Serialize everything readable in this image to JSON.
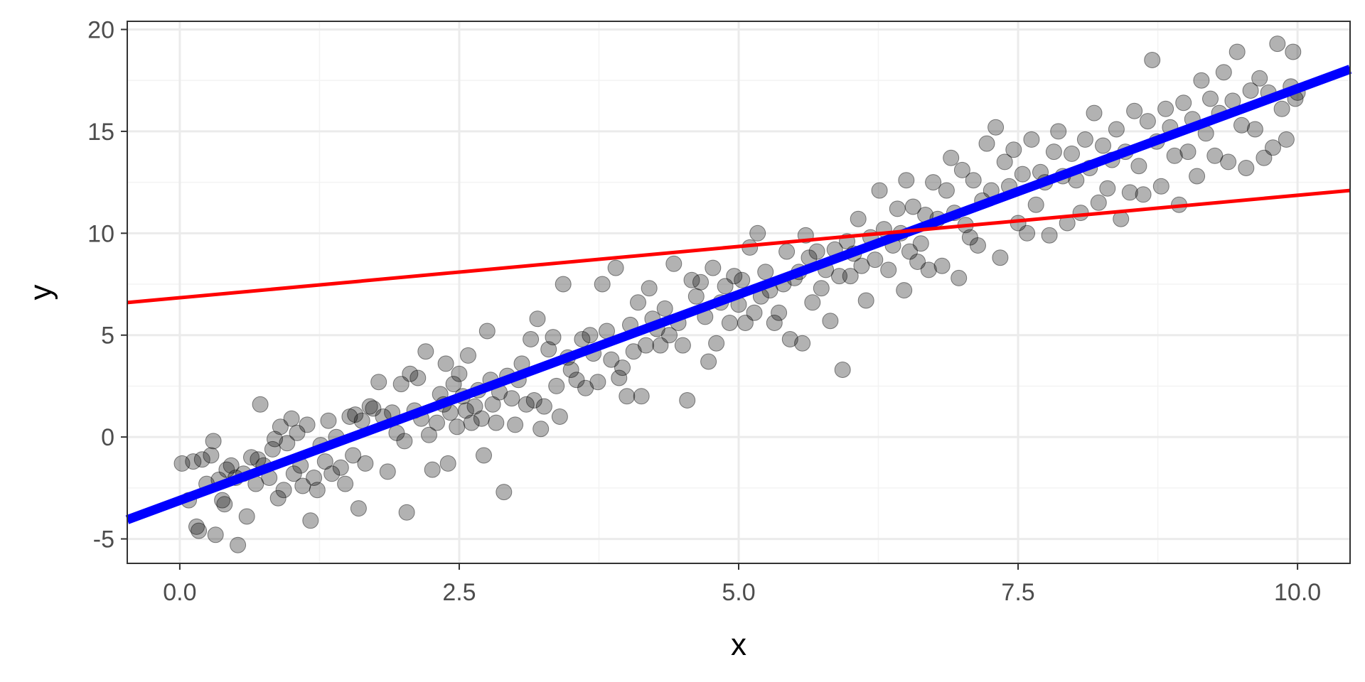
{
  "chart_data": {
    "type": "scatter",
    "title": "",
    "xlabel": "x",
    "ylabel": "y",
    "xlim": [
      -0.47,
      10.47
    ],
    "ylim": [
      -6.2,
      20.4
    ],
    "grid": true,
    "x_ticks": [
      0.0,
      2.5,
      5.0,
      7.5,
      10.0
    ],
    "x_tick_labels": [
      "0.0",
      "2.5",
      "5.0",
      "7.5",
      "10.0"
    ],
    "y_ticks": [
      -5,
      0,
      5,
      10,
      15,
      20
    ],
    "y_tick_labels": [
      "-5",
      "0",
      "5",
      "10",
      "15",
      "20"
    ],
    "colors": {
      "points": "#000000",
      "fit_line": "#0000ff",
      "reference_line": "#ff0000",
      "grid_major": "#ebebeb",
      "grid_minor": "#f3f3f3",
      "panel_border": "#333333",
      "tick_text": "#4d4d4d"
    },
    "points_alpha": 0.3,
    "lines": [
      {
        "name": "",
        "color": "#0000ff",
        "width": "thick",
        "x": [
          -0.47,
          10.47
        ],
        "y": [
          -4.06,
          18.05
        ]
      },
      {
        "name": "",
        "color": "#ff0000",
        "width": "thin",
        "x": [
          -0.47,
          10.47
        ],
        "y": [
          6.6,
          12.1
        ]
      }
    ],
    "series": [
      {
        "name": "",
        "points": [
          [
            0.02,
            -1.3
          ],
          [
            0.08,
            -3.1
          ],
          [
            0.12,
            -1.2
          ],
          [
            0.15,
            -4.4
          ],
          [
            0.17,
            -4.6
          ],
          [
            0.2,
            -1.1
          ],
          [
            0.24,
            -2.3
          ],
          [
            0.28,
            -0.9
          ],
          [
            0.3,
            -0.2
          ],
          [
            0.32,
            -4.8
          ],
          [
            0.35,
            -2.1
          ],
          [
            0.38,
            -3.1
          ],
          [
            0.4,
            -3.3
          ],
          [
            0.42,
            -1.6
          ],
          [
            0.46,
            -1.4
          ],
          [
            0.5,
            -2.0
          ],
          [
            0.52,
            -5.3
          ],
          [
            0.57,
            -1.8
          ],
          [
            0.6,
            -3.9
          ],
          [
            0.64,
            -1.0
          ],
          [
            0.68,
            -2.3
          ],
          [
            0.7,
            -1.1
          ],
          [
            0.72,
            1.6
          ],
          [
            0.75,
            -1.4
          ],
          [
            0.8,
            -2.0
          ],
          [
            0.83,
            -0.6
          ],
          [
            0.85,
            -0.1
          ],
          [
            0.88,
            -3.0
          ],
          [
            0.9,
            0.5
          ],
          [
            0.93,
            -2.6
          ],
          [
            0.96,
            -0.3
          ],
          [
            1.0,
            0.9
          ],
          [
            1.02,
            -1.8
          ],
          [
            1.05,
            0.2
          ],
          [
            1.08,
            -1.4
          ],
          [
            1.1,
            -2.4
          ],
          [
            1.14,
            0.6
          ],
          [
            1.17,
            -4.1
          ],
          [
            1.2,
            -2.0
          ],
          [
            1.23,
            -2.6
          ],
          [
            1.26,
            -0.4
          ],
          [
            1.3,
            -1.2
          ],
          [
            1.33,
            0.8
          ],
          [
            1.36,
            -1.8
          ],
          [
            1.4,
            0.0
          ],
          [
            1.44,
            -1.5
          ],
          [
            1.48,
            -2.3
          ],
          [
            1.52,
            1.0
          ],
          [
            1.55,
            -0.9
          ],
          [
            1.57,
            1.1
          ],
          [
            1.6,
            -3.5
          ],
          [
            1.63,
            0.8
          ],
          [
            1.66,
            -1.3
          ],
          [
            1.7,
            1.5
          ],
          [
            1.73,
            1.4
          ],
          [
            1.78,
            2.7
          ],
          [
            1.82,
            1.0
          ],
          [
            1.86,
            -1.7
          ],
          [
            1.9,
            1.2
          ],
          [
            1.94,
            0.2
          ],
          [
            1.98,
            2.6
          ],
          [
            2.01,
            -0.2
          ],
          [
            2.03,
            -3.7
          ],
          [
            2.06,
            3.1
          ],
          [
            2.1,
            1.3
          ],
          [
            2.13,
            2.9
          ],
          [
            2.16,
            0.9
          ],
          [
            2.2,
            4.2
          ],
          [
            2.23,
            0.1
          ],
          [
            2.26,
            -1.6
          ],
          [
            2.3,
            0.7
          ],
          [
            2.33,
            2.1
          ],
          [
            2.36,
            1.6
          ],
          [
            2.38,
            3.6
          ],
          [
            2.4,
            -1.3
          ],
          [
            2.42,
            1.2
          ],
          [
            2.45,
            2.6
          ],
          [
            2.48,
            0.5
          ],
          [
            2.5,
            3.1
          ],
          [
            2.53,
            2.0
          ],
          [
            2.56,
            1.3
          ],
          [
            2.58,
            4.0
          ],
          [
            2.61,
            0.7
          ],
          [
            2.64,
            1.5
          ],
          [
            2.67,
            2.3
          ],
          [
            2.7,
            0.9
          ],
          [
            2.72,
            -0.9
          ],
          [
            2.75,
            5.2
          ],
          [
            2.78,
            2.8
          ],
          [
            2.8,
            1.6
          ],
          [
            2.83,
            0.7
          ],
          [
            2.86,
            2.2
          ],
          [
            2.9,
            -2.7
          ],
          [
            2.93,
            3.0
          ],
          [
            2.97,
            1.9
          ],
          [
            3.0,
            0.6
          ],
          [
            3.03,
            2.8
          ],
          [
            3.06,
            3.6
          ],
          [
            3.1,
            1.6
          ],
          [
            3.14,
            4.8
          ],
          [
            3.17,
            1.8
          ],
          [
            3.2,
            5.8
          ],
          [
            3.23,
            0.4
          ],
          [
            3.26,
            1.5
          ],
          [
            3.3,
            4.3
          ],
          [
            3.34,
            4.9
          ],
          [
            3.37,
            2.5
          ],
          [
            3.4,
            1.0
          ],
          [
            3.43,
            7.5
          ],
          [
            3.47,
            3.9
          ],
          [
            3.5,
            3.3
          ],
          [
            3.55,
            2.8
          ],
          [
            3.6,
            4.8
          ],
          [
            3.63,
            2.4
          ],
          [
            3.67,
            5.0
          ],
          [
            3.7,
            4.1
          ],
          [
            3.74,
            2.7
          ],
          [
            3.78,
            7.5
          ],
          [
            3.82,
            5.2
          ],
          [
            3.86,
            3.8
          ],
          [
            3.9,
            8.3
          ],
          [
            3.93,
            2.9
          ],
          [
            3.96,
            3.4
          ],
          [
            4.0,
            2.0
          ],
          [
            4.03,
            5.5
          ],
          [
            4.06,
            4.2
          ],
          [
            4.1,
            6.6
          ],
          [
            4.13,
            2.0
          ],
          [
            4.17,
            4.5
          ],
          [
            4.2,
            7.3
          ],
          [
            4.23,
            5.8
          ],
          [
            4.27,
            5.3
          ],
          [
            4.3,
            4.5
          ],
          [
            4.34,
            6.3
          ],
          [
            4.38,
            5.0
          ],
          [
            4.42,
            8.5
          ],
          [
            4.46,
            5.6
          ],
          [
            4.5,
            4.5
          ],
          [
            4.54,
            1.8
          ],
          [
            4.58,
            7.7
          ],
          [
            4.62,
            6.9
          ],
          [
            4.66,
            7.6
          ],
          [
            4.7,
            5.9
          ],
          [
            4.73,
            3.7
          ],
          [
            4.77,
            8.3
          ],
          [
            4.8,
            4.6
          ],
          [
            4.84,
            6.6
          ],
          [
            4.88,
            7.4
          ],
          [
            4.92,
            5.6
          ],
          [
            4.96,
            7.9
          ],
          [
            5.0,
            6.5
          ],
          [
            5.03,
            7.7
          ],
          [
            5.06,
            5.6
          ],
          [
            5.1,
            9.3
          ],
          [
            5.14,
            6.1
          ],
          [
            5.17,
            10.0
          ],
          [
            5.2,
            6.9
          ],
          [
            5.24,
            8.1
          ],
          [
            5.28,
            7.2
          ],
          [
            5.32,
            5.6
          ],
          [
            5.36,
            6.1
          ],
          [
            5.4,
            7.5
          ],
          [
            5.43,
            9.1
          ],
          [
            5.46,
            4.8
          ],
          [
            5.5,
            7.8
          ],
          [
            5.54,
            8.1
          ],
          [
            5.57,
            4.6
          ],
          [
            5.6,
            9.9
          ],
          [
            5.63,
            8.8
          ],
          [
            5.66,
            6.6
          ],
          [
            5.7,
            9.1
          ],
          [
            5.74,
            7.3
          ],
          [
            5.78,
            8.2
          ],
          [
            5.82,
            5.7
          ],
          [
            5.86,
            9.2
          ],
          [
            5.9,
            7.9
          ],
          [
            5.93,
            3.3
          ],
          [
            5.97,
            9.6
          ],
          [
            6.0,
            7.9
          ],
          [
            6.03,
            9.0
          ],
          [
            6.07,
            10.7
          ],
          [
            6.1,
            8.4
          ],
          [
            6.14,
            6.7
          ],
          [
            6.18,
            9.8
          ],
          [
            6.22,
            8.7
          ],
          [
            6.26,
            12.1
          ],
          [
            6.3,
            10.2
          ],
          [
            6.34,
            8.2
          ],
          [
            6.38,
            9.4
          ],
          [
            6.42,
            11.2
          ],
          [
            6.45,
            10.0
          ],
          [
            6.48,
            7.2
          ],
          [
            6.5,
            12.6
          ],
          [
            6.53,
            9.1
          ],
          [
            6.56,
            11.3
          ],
          [
            6.6,
            8.6
          ],
          [
            6.63,
            9.5
          ],
          [
            6.67,
            10.9
          ],
          [
            6.7,
            8.2
          ],
          [
            6.74,
            12.5
          ],
          [
            6.78,
            10.7
          ],
          [
            6.82,
            8.4
          ],
          [
            6.86,
            12.1
          ],
          [
            6.9,
            13.7
          ],
          [
            6.93,
            11.0
          ],
          [
            6.97,
            7.8
          ],
          [
            7.0,
            13.1
          ],
          [
            7.03,
            10.4
          ],
          [
            7.07,
            9.8
          ],
          [
            7.1,
            12.6
          ],
          [
            7.14,
            9.4
          ],
          [
            7.18,
            11.6
          ],
          [
            7.22,
            14.4
          ],
          [
            7.26,
            12.1
          ],
          [
            7.3,
            15.2
          ],
          [
            7.34,
            8.8
          ],
          [
            7.38,
            13.5
          ],
          [
            7.42,
            12.3
          ],
          [
            7.46,
            14.1
          ],
          [
            7.5,
            10.5
          ],
          [
            7.54,
            12.9
          ],
          [
            7.58,
            10.0
          ],
          [
            7.62,
            14.6
          ],
          [
            7.66,
            11.4
          ],
          [
            7.7,
            13.0
          ],
          [
            7.74,
            12.5
          ],
          [
            7.78,
            9.9
          ],
          [
            7.82,
            14.0
          ],
          [
            7.86,
            15.0
          ],
          [
            7.9,
            12.8
          ],
          [
            7.94,
            10.5
          ],
          [
            7.98,
            13.9
          ],
          [
            8.02,
            12.6
          ],
          [
            8.06,
            11.0
          ],
          [
            8.1,
            14.6
          ],
          [
            8.14,
            13.2
          ],
          [
            8.18,
            15.9
          ],
          [
            8.22,
            11.5
          ],
          [
            8.26,
            14.3
          ],
          [
            8.3,
            12.2
          ],
          [
            8.34,
            13.6
          ],
          [
            8.38,
            15.1
          ],
          [
            8.42,
            10.7
          ],
          [
            8.46,
            14.0
          ],
          [
            8.5,
            12.0
          ],
          [
            8.54,
            16.0
          ],
          [
            8.58,
            13.3
          ],
          [
            8.62,
            11.9
          ],
          [
            8.66,
            15.5
          ],
          [
            8.7,
            18.5
          ],
          [
            8.74,
            14.5
          ],
          [
            8.78,
            12.3
          ],
          [
            8.82,
            16.1
          ],
          [
            8.86,
            15.2
          ],
          [
            8.9,
            13.8
          ],
          [
            8.94,
            11.4
          ],
          [
            8.98,
            16.4
          ],
          [
            9.02,
            14.0
          ],
          [
            9.06,
            15.6
          ],
          [
            9.1,
            12.8
          ],
          [
            9.14,
            17.5
          ],
          [
            9.18,
            14.9
          ],
          [
            9.22,
            16.6
          ],
          [
            9.26,
            13.8
          ],
          [
            9.3,
            15.9
          ],
          [
            9.34,
            17.9
          ],
          [
            9.38,
            13.5
          ],
          [
            9.42,
            16.5
          ],
          [
            9.46,
            18.9
          ],
          [
            9.5,
            15.3
          ],
          [
            9.54,
            13.2
          ],
          [
            9.58,
            17.0
          ],
          [
            9.62,
            15.1
          ],
          [
            9.66,
            17.6
          ],
          [
            9.7,
            13.7
          ],
          [
            9.74,
            16.9
          ],
          [
            9.78,
            14.2
          ],
          [
            9.82,
            19.3
          ],
          [
            9.86,
            16.1
          ],
          [
            9.9,
            14.6
          ],
          [
            9.94,
            17.2
          ],
          [
            9.96,
            18.9
          ],
          [
            9.98,
            16.6
          ],
          [
            10.0,
            16.9
          ]
        ]
      }
    ]
  }
}
